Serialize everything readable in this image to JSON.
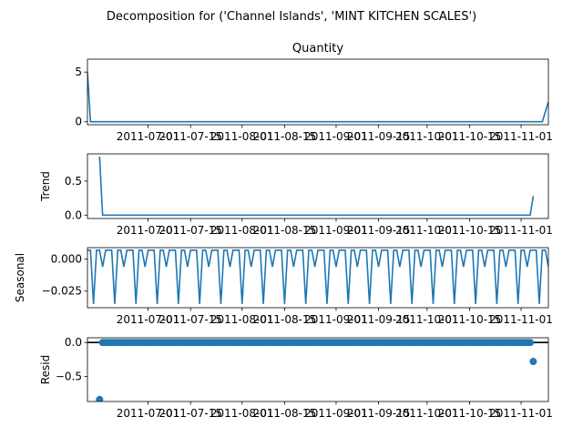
{
  "chart_data": {
    "suptitle": "Decomposition for ('Channel Islands', 'MINT KITCHEN SCALES')",
    "date_ticks": [
      "2011-07-01",
      "2011-07-15",
      "2011-08-01",
      "2011-08-15",
      "2011-09-01",
      "2011-09-15",
      "2011-10-01",
      "2011-10-15",
      "2011-11-01"
    ],
    "xlim": [
      "2011-06-11",
      "2011-11-10"
    ],
    "panels": [
      {
        "name": "observed",
        "type": "line",
        "title": "Quantity",
        "ylabel": "",
        "ylim": [
          -0.3,
          6.3
        ],
        "yticks": [
          0,
          5
        ],
        "ytick_labels": [
          "0",
          "5"
        ],
        "x": [
          "2011-06-11",
          "2011-06-12",
          "2011-11-08",
          "2011-11-10"
        ],
        "y": [
          5.0,
          0.0,
          0.0,
          2.0
        ]
      },
      {
        "name": "trend",
        "type": "line",
        "title": "",
        "ylabel": "Trend",
        "ylim": [
          -0.05,
          0.9
        ],
        "yticks": [
          0.0,
          0.5
        ],
        "ytick_labels": [
          "0.0",
          "0.5"
        ],
        "x": [
          "2011-06-15",
          "2011-06-16",
          "2011-11-04",
          "2011-11-05"
        ],
        "y": [
          0.86,
          0.0,
          0.0,
          0.28
        ]
      },
      {
        "name": "seasonal",
        "type": "line",
        "title": "",
        "ylabel": "Seasonal",
        "ylim": [
          -0.038,
          0.009
        ],
        "yticks": [
          0.0,
          -0.025
        ],
        "ytick_labels": [
          "0.000",
          "−0.025"
        ],
        "start": "2011-06-11",
        "end": "2011-11-10",
        "period_days": 7,
        "pattern": [
          0.007,
          0.007,
          -0.035,
          0.007,
          0.007,
          -0.006,
          0.007
        ]
      },
      {
        "name": "resid",
        "type": "scatter",
        "title": "",
        "ylabel": "Resid",
        "ylim": [
          -0.87,
          0.07
        ],
        "yticks": [
          0.0,
          -0.5
        ],
        "ytick_labels": [
          "0.0",
          "−0.5"
        ],
        "zero_line": true,
        "start": "2011-06-15",
        "end": "2011-11-05",
        "default": 0.0,
        "exceptions": [
          {
            "x": "2011-06-15",
            "y": -0.84
          },
          {
            "x": "2011-11-05",
            "y": -0.28
          }
        ]
      }
    ],
    "colors": {
      "series": "#1f77b4",
      "axis": "#000000"
    },
    "grid": false
  }
}
